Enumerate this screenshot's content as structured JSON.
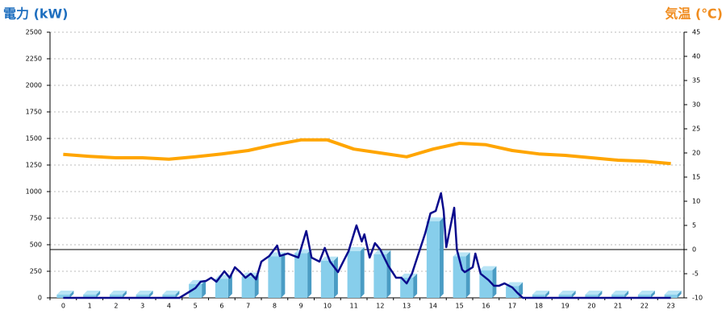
{
  "chart_data": {
    "type": "bar",
    "y_label": "電力 (kW)",
    "y_label_color": "#1f6fbf",
    "y2_label": "気温 (℃)",
    "y2_label_color": "#f08c1e",
    "categories": [
      "0",
      "1",
      "2",
      "3",
      "4",
      "5",
      "6",
      "7",
      "8",
      "9",
      "10",
      "11",
      "12",
      "13",
      "14",
      "15",
      "16",
      "17",
      "18",
      "19",
      "20",
      "21",
      "22",
      "23"
    ],
    "ylim": [
      0,
      2500
    ],
    "yticks": [
      0,
      250,
      500,
      750,
      1000,
      1250,
      1500,
      1750,
      2000,
      2250,
      2500
    ],
    "y2lim": [
      -10,
      45
    ],
    "y2ticks": [
      -10,
      -5,
      0,
      5,
      10,
      15,
      20,
      25,
      30,
      35,
      40,
      45
    ],
    "grid": true,
    "reference_line": {
      "axis": "y2",
      "value": 0
    },
    "series": [
      {
        "type": "bar",
        "color": "#87ceeb",
        "values": [
          30,
          30,
          30,
          30,
          30,
          130,
          180,
          200,
          390,
          420,
          350,
          440,
          410,
          190,
          720,
          390,
          260,
          110,
          30,
          30,
          30,
          30,
          30,
          30
        ]
      },
      {
        "type": "line",
        "color": "#0a0a8c",
        "x": [
          0,
          4.4,
          5.0,
          5.2,
          5.4,
          5.6,
          5.8,
          6.1,
          6.3,
          6.5,
          6.7,
          6.9,
          7.1,
          7.3,
          7.5,
          7.8,
          8.1,
          8.2,
          8.5,
          8.9,
          9.2,
          9.4,
          9.7,
          9.9,
          10.1,
          10.4,
          10.6,
          10.8,
          11.1,
          11.3,
          11.4,
          11.6,
          11.8,
          12.0,
          12.3,
          12.6,
          12.8,
          13.0,
          13.2,
          13.4,
          13.7,
          13.9,
          14.1,
          14.3,
          14.4,
          14.5,
          14.8,
          14.9,
          15.1,
          15.2,
          15.5,
          15.6,
          15.8,
          16.1,
          16.3,
          16.5,
          16.7,
          17.0,
          17.2,
          17.4,
          23
        ],
        "values": [
          0,
          0,
          91,
          152,
          159,
          189,
          152,
          250,
          189,
          288,
          242,
          189,
          227,
          174,
          341,
          394,
          492,
          394,
          417,
          379,
          629,
          379,
          341,
          470,
          341,
          242,
          341,
          439,
          682,
          530,
          598,
          379,
          515,
          455,
          303,
          189,
          189,
          136,
          227,
          379,
          606,
          795,
          818,
          985,
          818,
          477,
          848,
          455,
          265,
          242,
          288,
          417,
          227,
          167,
          114,
          114,
          136,
          98,
          45,
          0,
          0
        ]
      },
      {
        "type": "line",
        "axis": "y2",
        "color": "#ffa500",
        "values": [
          19.7,
          19.3,
          19.0,
          19.0,
          18.7,
          19.2,
          19.8,
          20.5,
          21.7,
          22.7,
          22.7,
          20.8,
          20.0,
          19.2,
          20.8,
          22.0,
          21.7,
          20.5,
          19.8,
          19.5,
          19.0,
          18.5,
          18.3,
          17.8
        ]
      }
    ]
  }
}
